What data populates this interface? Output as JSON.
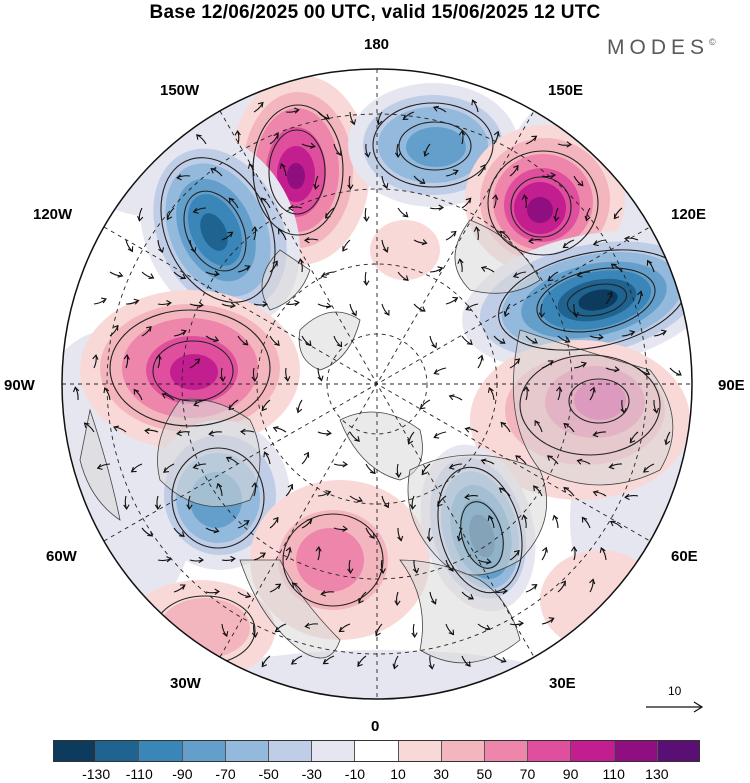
{
  "header": {
    "title": "Base 12/06/2025 00 UTC, valid 15/06/2025 12 UTC",
    "brand": "MODES",
    "brand_mark": "©"
  },
  "longitude_labels": {
    "lon_180": "180",
    "lon_150w": "150W",
    "lon_150e": "150E",
    "lon_120w": "120W",
    "lon_120e": "120E",
    "lon_90w": "90W",
    "lon_90e": "90E",
    "lon_60w": "60W",
    "lon_60e": "60E",
    "lon_30w": "30W",
    "lon_30e": "30E",
    "lon_0": "0"
  },
  "reference_vector": {
    "label": "10"
  },
  "colorbar": {
    "colors": [
      "#0d3b5e",
      "#1f6391",
      "#3a86b8",
      "#649fcb",
      "#93b9dc",
      "#c0cde6",
      "#e6e6f0",
      "#ffffff",
      "#f9d8d8",
      "#f4b6be",
      "#ee86ab",
      "#e04f9d",
      "#c31e8f",
      "#8f0f80",
      "#5a0f74"
    ],
    "tick_labels": [
      "-130",
      "-110",
      "-90",
      "-70",
      "-50",
      "-30",
      "-10",
      "10",
      "30",
      "50",
      "70",
      "90",
      "110",
      "130"
    ]
  },
  "map_data": {
    "projection": "north polar stereographic",
    "anomaly_centers": [
      {
        "sign": "positive",
        "level": 110,
        "near": "150W-180"
      },
      {
        "sign": "negative",
        "level": -70,
        "near": "165E-180"
      },
      {
        "sign": "positive",
        "level": 110,
        "near": "135E"
      },
      {
        "sign": "negative",
        "level": -110,
        "near": "120W-135W"
      },
      {
        "sign": "negative",
        "level": -130,
        "near": "110E"
      },
      {
        "sign": "positive",
        "level": 90,
        "near": "95W"
      },
      {
        "sign": "positive",
        "level": 90,
        "near": "80E"
      },
      {
        "sign": "negative",
        "level": -70,
        "near": "70W"
      },
      {
        "sign": "positive",
        "level": 70,
        "near": "10W"
      },
      {
        "sign": "negative",
        "level": -110,
        "near": "45E"
      },
      {
        "sign": "positive",
        "level": 30,
        "near": "30W"
      }
    ]
  }
}
